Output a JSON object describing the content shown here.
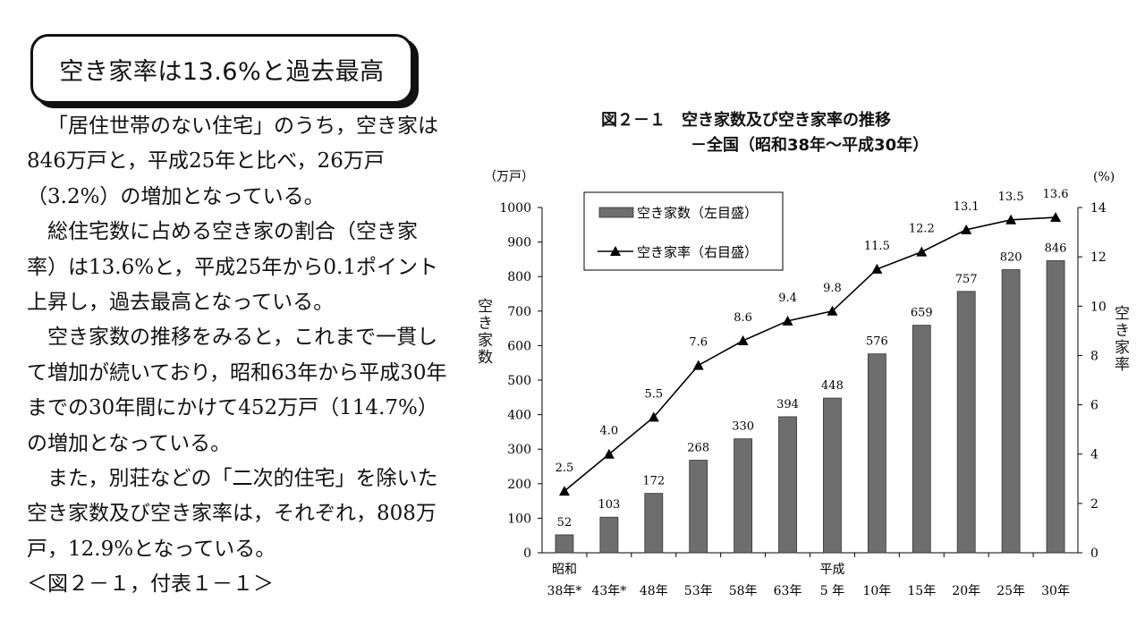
{
  "headline": "空き家率は13.6%と過去最高",
  "paragraphs": [
    "「居住世帯のない住宅」のうち，空き家は846万戸と，平成25年と比べ，26万戸（3.2%）の増加となっている。",
    "総住宅数に占める空き家の割合（空き家率）は13.6%と，平成25年から0.1ポイント上昇し，過去最高となっている。",
    "空き家数の推移をみると，これまで一貫して増加が続いており，昭和63年から平成30年までの30年間にかけて452万戸（114.7%）の増加となっている。",
    "また，別荘などの「二次的住宅」を除いた空き家数及び空き家率は，それぞれ，808万戸，12.9%となっている。",
    "＜図２－１，付表１－１＞"
  ],
  "figure": {
    "title": "図２－１　空き家数及び空き家率の推移",
    "subtitle": "－全国（昭和38年～平成30年）"
  },
  "chart_data": {
    "type": "bar+line",
    "title": "図２－１　空き家数及び空き家率の推移",
    "subtitle": "－全国（昭和38年～平成30年）",
    "categories": [
      "38年*",
      "43年*",
      "48年",
      "53年",
      "58年",
      "63年",
      "5 年",
      "10年",
      "15年",
      "20年",
      "25年",
      "30年"
    ],
    "era_labels": [
      {
        "label": "昭和",
        "category_index": 0
      },
      {
        "label": "平成",
        "category_index": 6
      }
    ],
    "series": [
      {
        "name": "空き家数（左目盛）",
        "type": "bar",
        "axis": "left",
        "values": [
          52,
          103,
          172,
          268,
          330,
          394,
          448,
          576,
          659,
          757,
          820,
          846
        ],
        "labels": [
          "52",
          "103",
          "172",
          "268",
          "330",
          "394",
          "448",
          "576",
          "659",
          "757",
          "820",
          "846"
        ]
      },
      {
        "name": "空き家率（右目盛）",
        "type": "line",
        "axis": "right",
        "values": [
          2.5,
          4.0,
          5.5,
          7.6,
          8.6,
          9.4,
          9.8,
          11.5,
          12.2,
          13.1,
          13.5,
          13.6
        ],
        "labels": [
          "2.5",
          "4.0",
          "5.5",
          "7.6",
          "8.6",
          "9.4",
          "9.8",
          "11.5",
          "12.2",
          "13.1",
          "13.5",
          "13.6"
        ]
      }
    ],
    "left_axis": {
      "unit": "（万戸）",
      "label": "空き家数",
      "range": [
        0,
        1000
      ],
      "ticks": [
        "0",
        "100",
        "200",
        "300",
        "400",
        "500",
        "600",
        "700",
        "800",
        "900",
        "1000"
      ]
    },
    "right_axis": {
      "unit": "(%)",
      "label": "空き家率",
      "range": [
        0,
        14
      ],
      "ticks": [
        "0",
        "2",
        "4",
        "6",
        "8",
        "10",
        "12",
        "14"
      ]
    },
    "legend_position": "top-left",
    "bar_color": "#6e6e6e",
    "line_color": "#000000"
  }
}
